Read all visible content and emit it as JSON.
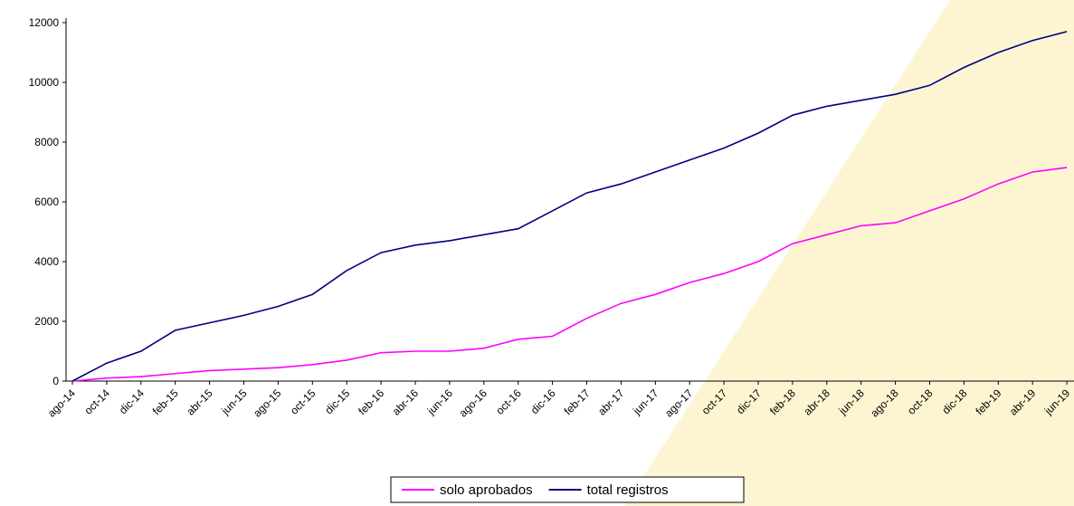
{
  "chart_data": {
    "type": "line",
    "categories": [
      "ago-14",
      "oct-14",
      "dic-14",
      "feb-15",
      "abr-15",
      "jun-15",
      "ago-15",
      "oct-15",
      "dic-15",
      "feb-16",
      "abr-16",
      "jun-16",
      "ago-16",
      "oct-16",
      "dic-16",
      "feb-17",
      "abr-17",
      "jun-17",
      "ago-17",
      "oct-17",
      "dic-17",
      "feb-18",
      "abr-18",
      "jun-18",
      "ago-18",
      "oct-18",
      "dic-18",
      "feb-19",
      "abr-19",
      "jun-19"
    ],
    "series": [
      {
        "name": "solo aprobados",
        "color": "#ff00ff",
        "values": [
          0,
          100,
          150,
          250,
          350,
          400,
          450,
          550,
          700,
          950,
          1000,
          1000,
          1100,
          1400,
          1500,
          2100,
          2600,
          2900,
          3300,
          3600,
          4000,
          4600,
          4900,
          5200,
          5300,
          5700,
          6100,
          6600,
          7000,
          7150
        ]
      },
      {
        "name": "total registros",
        "color": "#000080",
        "values": [
          0,
          600,
          1000,
          1700,
          1950,
          2200,
          2500,
          2900,
          3700,
          4300,
          4550,
          4700,
          4900,
          5100,
          5700,
          6300,
          6600,
          7000,
          7400,
          7800,
          8300,
          8900,
          9200,
          9400,
          9600,
          9900,
          10500,
          11000,
          11400,
          11700
        ]
      }
    ],
    "ylim": [
      0,
      12000
    ],
    "yticks": [
      0,
      2000,
      4000,
      6000,
      8000,
      10000,
      12000
    ],
    "legend": "bottom"
  }
}
